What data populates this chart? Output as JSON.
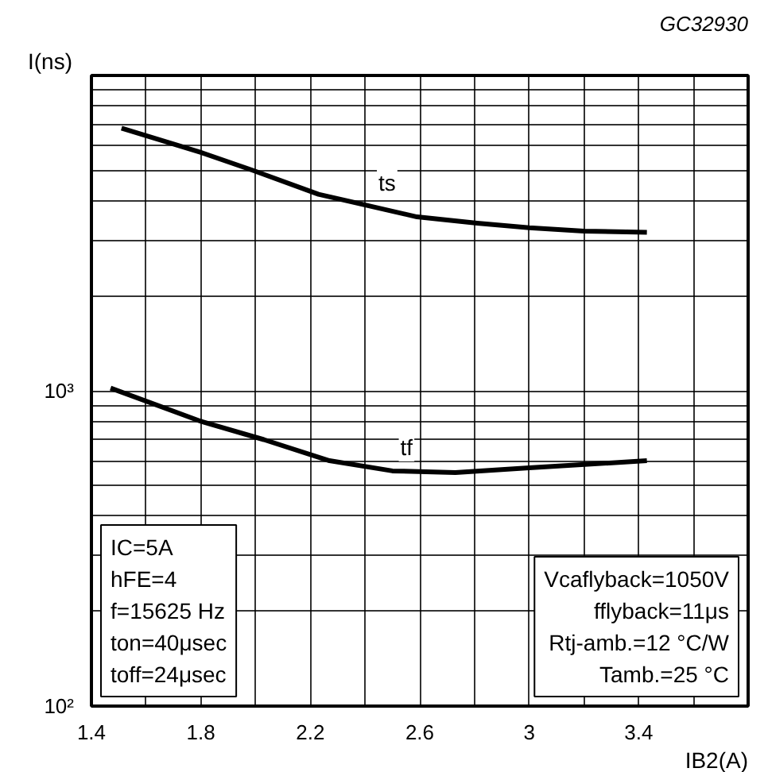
{
  "chart_data": {
    "type": "line",
    "title": "GC32930",
    "xlabel": "IB2(A)",
    "ylabel": "I(ns)",
    "xlim": [
      1.4,
      3.8
    ],
    "ylim": [
      100,
      10000
    ],
    "log": "y",
    "grid": true,
    "marker": "none",
    "line_style": "solid",
    "xticks": [
      1.4,
      {
        "value": 1.6,
        "label": null
      },
      1.8,
      {
        "value": 2.0,
        "label": null
      },
      2.2,
      {
        "value": 2.4,
        "label": null
      },
      2.6,
      {
        "value": 2.8,
        "label": null
      },
      3,
      {
        "value": 3.2,
        "label": null
      },
      3.4,
      {
        "value": 3.6,
        "label": null
      },
      {
        "value": 3.8,
        "label": null
      }
    ],
    "yticks": [
      {
        "value": 100,
        "label": "10²"
      },
      {
        "value": 200,
        "label": null
      },
      {
        "value": 300,
        "label": null
      },
      {
        "value": 400,
        "label": null
      },
      {
        "value": 500,
        "label": null
      },
      {
        "value": 600,
        "label": null
      },
      {
        "value": 700,
        "label": null
      },
      {
        "value": 800,
        "label": null
      },
      {
        "value": 900,
        "label": null
      },
      {
        "value": 1000,
        "label": "10³"
      },
      {
        "value": 2000,
        "label": null
      },
      {
        "value": 3000,
        "label": null
      },
      {
        "value": 4000,
        "label": null
      },
      {
        "value": 5000,
        "label": null
      },
      {
        "value": 6000,
        "label": null
      },
      {
        "value": 7000,
        "label": null
      },
      {
        "value": 8000,
        "label": null
      },
      {
        "value": 9000,
        "label": null
      },
      {
        "value": 10000,
        "label": null
      }
    ],
    "series": [
      {
        "name": "ts",
        "color": "#000000",
        "x": [
          1.51,
          1.8,
          1.99,
          2.23,
          2.42,
          2.59,
          2.81,
          3.0,
          3.2,
          3.43
        ],
        "values": [
          6800,
          5700,
          5000,
          4200,
          3850,
          3560,
          3400,
          3290,
          3210,
          3180
        ]
      },
      {
        "name": "tf",
        "color": "#000000",
        "x": [
          1.47,
          1.8,
          2.03,
          2.27,
          2.5,
          2.73,
          3.0,
          3.43
        ],
        "values": [
          1020,
          800,
          700,
          600,
          557,
          550,
          570,
          600
        ]
      }
    ],
    "annotations": [
      "IC=5A\nhFE=4\nf=15625 Hz\nton=40μsec\ntoff=24μsec",
      "Vcaflyback=1050V\nfflyback=11μs\nRtj-amb.=12 °C/W\nTamb.=25 °C"
    ]
  }
}
